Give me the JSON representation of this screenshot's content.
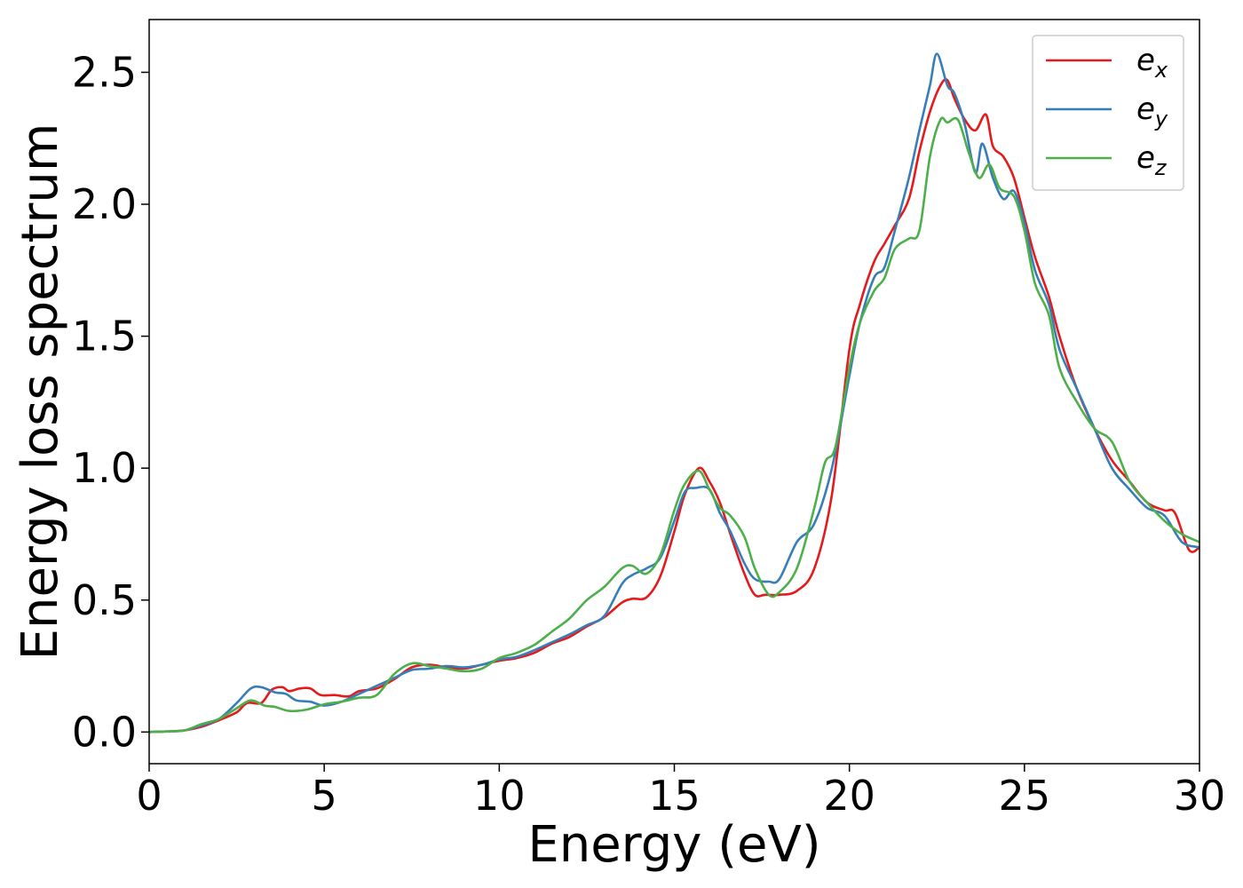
{
  "chart_data": {
    "type": "line",
    "title": "",
    "xlabel": "Energy (eV)",
    "ylabel": "Energy loss spectrum",
    "xlim": [
      0,
      30
    ],
    "ylim": [
      -0.12,
      2.7
    ],
    "xticks": [
      0,
      5,
      10,
      15,
      20,
      25,
      30
    ],
    "xtick_labels": [
      "0",
      "5",
      "10",
      "15",
      "20",
      "25",
      "30"
    ],
    "yticks": [
      0.0,
      0.5,
      1.0,
      1.5,
      2.0,
      2.5
    ],
    "ytick_labels": [
      "0.0",
      "0.5",
      "1.0",
      "1.5",
      "2.0",
      "2.5"
    ],
    "grid": false,
    "legend_position": "top-right",
    "series": [
      {
        "name": "e",
        "name_sub": "x",
        "color": "#e41a1c",
        "points": [
          [
            0,
            0.0
          ],
          [
            0.5,
            0.002
          ],
          [
            1.0,
            0.006
          ],
          [
            1.5,
            0.02
          ],
          [
            2.0,
            0.045
          ],
          [
            2.5,
            0.075
          ],
          [
            2.8,
            0.11
          ],
          [
            3.2,
            0.11
          ],
          [
            3.5,
            0.16
          ],
          [
            3.8,
            0.17
          ],
          [
            4.0,
            0.155
          ],
          [
            4.3,
            0.165
          ],
          [
            4.6,
            0.165
          ],
          [
            4.9,
            0.14
          ],
          [
            5.3,
            0.14
          ],
          [
            5.7,
            0.135
          ],
          [
            6.0,
            0.155
          ],
          [
            6.5,
            0.165
          ],
          [
            7.0,
            0.2
          ],
          [
            7.5,
            0.245
          ],
          [
            8.0,
            0.255
          ],
          [
            8.5,
            0.245
          ],
          [
            9.0,
            0.24
          ],
          [
            9.5,
            0.255
          ],
          [
            10.0,
            0.27
          ],
          [
            10.5,
            0.28
          ],
          [
            11.0,
            0.3
          ],
          [
            11.5,
            0.335
          ],
          [
            12.0,
            0.36
          ],
          [
            12.5,
            0.4
          ],
          [
            13.0,
            0.435
          ],
          [
            13.5,
            0.49
          ],
          [
            13.8,
            0.505
          ],
          [
            14.2,
            0.51
          ],
          [
            14.6,
            0.59
          ],
          [
            15.0,
            0.76
          ],
          [
            15.3,
            0.9
          ],
          [
            15.7,
            1.0
          ],
          [
            16.0,
            0.95
          ],
          [
            16.3,
            0.87
          ],
          [
            16.6,
            0.75
          ],
          [
            17.0,
            0.6
          ],
          [
            17.3,
            0.52
          ],
          [
            17.6,
            0.52
          ],
          [
            18.0,
            0.52
          ],
          [
            18.5,
            0.535
          ],
          [
            19.0,
            0.62
          ],
          [
            19.5,
            0.9
          ],
          [
            20.0,
            1.45
          ],
          [
            20.3,
            1.62
          ],
          [
            20.7,
            1.78
          ],
          [
            21.0,
            1.85
          ],
          [
            21.3,
            1.92
          ],
          [
            21.7,
            2.02
          ],
          [
            22.0,
            2.2
          ],
          [
            22.3,
            2.35
          ],
          [
            22.6,
            2.45
          ],
          [
            22.8,
            2.47
          ],
          [
            23.0,
            2.4
          ],
          [
            23.3,
            2.32
          ],
          [
            23.6,
            2.28
          ],
          [
            23.9,
            2.34
          ],
          [
            24.1,
            2.22
          ],
          [
            24.4,
            2.18
          ],
          [
            24.7,
            2.1
          ],
          [
            25.0,
            1.95
          ],
          [
            25.3,
            1.8
          ],
          [
            25.7,
            1.65
          ],
          [
            26.0,
            1.5
          ],
          [
            26.5,
            1.3
          ],
          [
            27.0,
            1.15
          ],
          [
            27.5,
            1.03
          ],
          [
            28.0,
            0.95
          ],
          [
            28.5,
            0.87
          ],
          [
            29.0,
            0.84
          ],
          [
            29.3,
            0.83
          ],
          [
            29.7,
            0.69
          ],
          [
            30.0,
            0.7
          ]
        ]
      },
      {
        "name": "e",
        "name_sub": "y",
        "color": "#377eb8",
        "points": [
          [
            0,
            0.0
          ],
          [
            0.5,
            0.002
          ],
          [
            1.0,
            0.006
          ],
          [
            1.5,
            0.025
          ],
          [
            2.0,
            0.05
          ],
          [
            2.5,
            0.11
          ],
          [
            2.9,
            0.165
          ],
          [
            3.2,
            0.17
          ],
          [
            3.6,
            0.15
          ],
          [
            3.9,
            0.145
          ],
          [
            4.2,
            0.12
          ],
          [
            4.6,
            0.115
          ],
          [
            5.0,
            0.1
          ],
          [
            5.5,
            0.115
          ],
          [
            6.0,
            0.145
          ],
          [
            6.5,
            0.175
          ],
          [
            7.0,
            0.205
          ],
          [
            7.5,
            0.235
          ],
          [
            8.0,
            0.24
          ],
          [
            8.5,
            0.25
          ],
          [
            9.0,
            0.245
          ],
          [
            9.5,
            0.255
          ],
          [
            10.0,
            0.275
          ],
          [
            10.5,
            0.285
          ],
          [
            11.0,
            0.31
          ],
          [
            11.5,
            0.34
          ],
          [
            12.0,
            0.37
          ],
          [
            12.5,
            0.405
          ],
          [
            13.0,
            0.44
          ],
          [
            13.5,
            0.56
          ],
          [
            13.8,
            0.595
          ],
          [
            14.2,
            0.62
          ],
          [
            14.6,
            0.66
          ],
          [
            15.0,
            0.8
          ],
          [
            15.3,
            0.91
          ],
          [
            15.6,
            0.925
          ],
          [
            16.0,
            0.92
          ],
          [
            16.3,
            0.83
          ],
          [
            16.6,
            0.76
          ],
          [
            17.0,
            0.64
          ],
          [
            17.3,
            0.58
          ],
          [
            17.7,
            0.57
          ],
          [
            18.0,
            0.58
          ],
          [
            18.5,
            0.72
          ],
          [
            19.0,
            0.79
          ],
          [
            19.5,
            1.0
          ],
          [
            20.0,
            1.35
          ],
          [
            20.3,
            1.55
          ],
          [
            20.7,
            1.72
          ],
          [
            21.0,
            1.76
          ],
          [
            21.3,
            1.9
          ],
          [
            21.7,
            2.1
          ],
          [
            22.0,
            2.28
          ],
          [
            22.3,
            2.45
          ],
          [
            22.5,
            2.57
          ],
          [
            22.8,
            2.45
          ],
          [
            23.0,
            2.42
          ],
          [
            23.3,
            2.3
          ],
          [
            23.6,
            2.12
          ],
          [
            23.8,
            2.23
          ],
          [
            24.1,
            2.1
          ],
          [
            24.4,
            2.02
          ],
          [
            24.7,
            2.05
          ],
          [
            25.0,
            1.93
          ],
          [
            25.3,
            1.75
          ],
          [
            25.7,
            1.62
          ],
          [
            26.0,
            1.45
          ],
          [
            26.5,
            1.3
          ],
          [
            27.0,
            1.15
          ],
          [
            27.5,
            1.0
          ],
          [
            28.0,
            0.92
          ],
          [
            28.5,
            0.85
          ],
          [
            29.0,
            0.82
          ],
          [
            29.5,
            0.72
          ],
          [
            30.0,
            0.7
          ]
        ]
      },
      {
        "name": "e",
        "name_sub": "z",
        "color": "#4daf4a",
        "points": [
          [
            0,
            0.0
          ],
          [
            0.5,
            0.002
          ],
          [
            1.0,
            0.006
          ],
          [
            1.5,
            0.03
          ],
          [
            2.0,
            0.05
          ],
          [
            2.5,
            0.09
          ],
          [
            2.9,
            0.12
          ],
          [
            3.3,
            0.1
          ],
          [
            3.6,
            0.095
          ],
          [
            4.0,
            0.08
          ],
          [
            4.5,
            0.085
          ],
          [
            5.0,
            0.105
          ],
          [
            5.5,
            0.115
          ],
          [
            6.0,
            0.13
          ],
          [
            6.5,
            0.14
          ],
          [
            7.0,
            0.22
          ],
          [
            7.5,
            0.26
          ],
          [
            8.0,
            0.25
          ],
          [
            8.5,
            0.24
          ],
          [
            9.0,
            0.23
          ],
          [
            9.5,
            0.24
          ],
          [
            10.0,
            0.28
          ],
          [
            10.5,
            0.3
          ],
          [
            11.0,
            0.33
          ],
          [
            11.5,
            0.38
          ],
          [
            12.0,
            0.43
          ],
          [
            12.5,
            0.5
          ],
          [
            13.0,
            0.55
          ],
          [
            13.5,
            0.62
          ],
          [
            13.8,
            0.63
          ],
          [
            14.2,
            0.6
          ],
          [
            14.6,
            0.67
          ],
          [
            15.0,
            0.84
          ],
          [
            15.3,
            0.94
          ],
          [
            15.7,
            0.99
          ],
          [
            16.0,
            0.92
          ],
          [
            16.3,
            0.85
          ],
          [
            16.6,
            0.82
          ],
          [
            17.0,
            0.74
          ],
          [
            17.3,
            0.62
          ],
          [
            17.7,
            0.52
          ],
          [
            18.0,
            0.53
          ],
          [
            18.5,
            0.62
          ],
          [
            19.0,
            0.85
          ],
          [
            19.3,
            1.02
          ],
          [
            19.6,
            1.08
          ],
          [
            20.0,
            1.38
          ],
          [
            20.3,
            1.55
          ],
          [
            20.7,
            1.67
          ],
          [
            21.0,
            1.72
          ],
          [
            21.3,
            1.83
          ],
          [
            21.7,
            1.87
          ],
          [
            22.0,
            1.9
          ],
          [
            22.3,
            2.18
          ],
          [
            22.6,
            2.32
          ],
          [
            22.8,
            2.31
          ],
          [
            23.1,
            2.32
          ],
          [
            23.4,
            2.2
          ],
          [
            23.7,
            2.1
          ],
          [
            24.0,
            2.15
          ],
          [
            24.3,
            2.06
          ],
          [
            24.7,
            2.03
          ],
          [
            25.0,
            1.9
          ],
          [
            25.3,
            1.7
          ],
          [
            25.7,
            1.58
          ],
          [
            26.0,
            1.38
          ],
          [
            26.5,
            1.25
          ],
          [
            27.0,
            1.15
          ],
          [
            27.5,
            1.1
          ],
          [
            28.0,
            0.95
          ],
          [
            28.5,
            0.87
          ],
          [
            29.0,
            0.8
          ],
          [
            29.5,
            0.75
          ],
          [
            30.0,
            0.72
          ]
        ]
      }
    ]
  }
}
